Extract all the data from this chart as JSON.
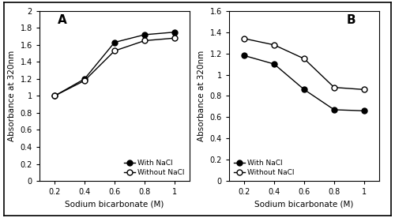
{
  "x": [
    0.2,
    0.4,
    0.6,
    0.8,
    1.0
  ],
  "panel_a": {
    "with_nacl": [
      1.0,
      1.2,
      1.63,
      1.72,
      1.75
    ],
    "without_nacl": [
      1.0,
      1.18,
      1.53,
      1.65,
      1.68
    ]
  },
  "panel_b": {
    "with_nacl": [
      1.18,
      1.1,
      0.86,
      0.67,
      0.66
    ],
    "without_nacl": [
      1.34,
      1.28,
      1.15,
      0.88,
      0.86
    ]
  },
  "ylim_a": [
    0,
    2.0
  ],
  "ylim_b": [
    0,
    1.6
  ],
  "yticks_a": [
    0,
    0.2,
    0.4,
    0.6,
    0.8,
    1.0,
    1.2,
    1.4,
    1.6,
    1.8,
    2.0
  ],
  "yticks_b": [
    0,
    0.2,
    0.4,
    0.6,
    0.8,
    1.0,
    1.2,
    1.4,
    1.6
  ],
  "xtick_labels": [
    "0.2",
    "0.4",
    "0.6",
    "0.8",
    "1"
  ],
  "xlabel": "Sodium bicarbonate (M)",
  "ylabel": "Absorbance at 320nm",
  "label_with": "With NaCl",
  "label_without": "Without NaCl",
  "label_a": "A",
  "label_b": "B",
  "line_color": "#000000",
  "markersize": 5,
  "bg_color": "#e8e8e8",
  "fig_bg": "#c8c8c8"
}
